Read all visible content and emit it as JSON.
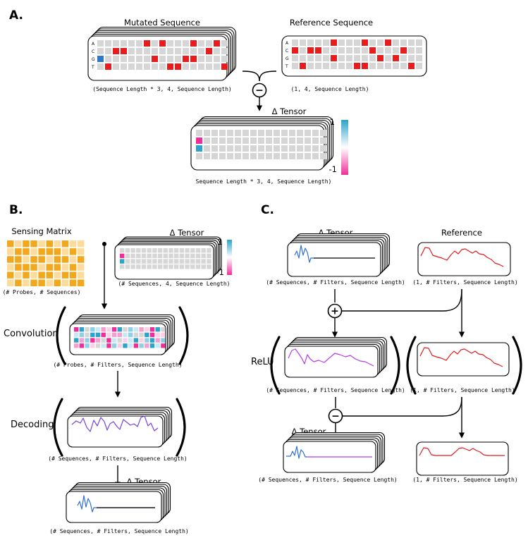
{
  "panels": {
    "a": "A.",
    "b": "B.",
    "c": "C."
  },
  "panel_a": {
    "mutated_title": "Mutated Sequence",
    "reference_title": "Reference Sequence",
    "row_labels": [
      "A",
      "C",
      "G",
      "T"
    ],
    "mutated_caption": "(Sequence Length * 3, 4, Sequence Length)",
    "reference_caption": "(1, 4, Sequence Length)",
    "delta_title": "Δ Tensor",
    "delta_caption": "Sequence Length * 3, 4, Sequence Length)",
    "colorbar_max": "1",
    "colorbar_min": "-1",
    "operator": "−"
  },
  "panel_b": {
    "sensing_title": "Sensing Matrix",
    "sensing_caption": "(# Probes, # Sequences)",
    "delta_title": "Δ Tensor",
    "delta_caption": "(# Sequences, 4, Sequence Length)",
    "colorbar_max": "1",
    "colorbar_min": "-1",
    "convolution_label": "Convolution",
    "convolution_caption": "(# Probes, # Filters, Sequence Length)",
    "decoding_label": "Decoding",
    "decoding_caption": "(# Sequences, # Filters, Sequence Length)",
    "output_title": "Δ Tensor",
    "output_caption": "(# Sequences, # Filters, Sequence Length)"
  },
  "panel_c": {
    "delta_title": "Δ Tensor",
    "delta_caption": "(# Sequences, # Filters, Sequence Length)",
    "reference_title": "Reference",
    "reference_caption": "(1, # Filters, Sequence Length)",
    "plus_operator": "+",
    "relu_label": "ReLU",
    "relu_caption": "(# Sequences, # Filters, Sequence Length)",
    "reference_mid_caption": "(1, # Filters, Sequence Length)",
    "minus_operator": "−",
    "output_title": "Δ Tensor",
    "output_caption": "(# Sequences, # Filters, Sequence Length)",
    "reference_bottom_caption": "(1, # Filters, Sequence Length)"
  },
  "colors": {
    "grid_cell": "#d6d6d6",
    "mutation_red": "#e81c1c",
    "mutation_blue": "#2d78c8",
    "delta_pink": "#ee2f9a",
    "delta_cyan": "#2ea3c9",
    "sensing_dark": "#f2a81d",
    "sensing_light": "#fbdc9c",
    "signal_blue": "#2f6fd0",
    "signal_purple": "#b43ee6",
    "signal_violet": "#7a44dc",
    "signal_red": "#e01c1c",
    "baseline_gray": "#8a8a8a"
  }
}
